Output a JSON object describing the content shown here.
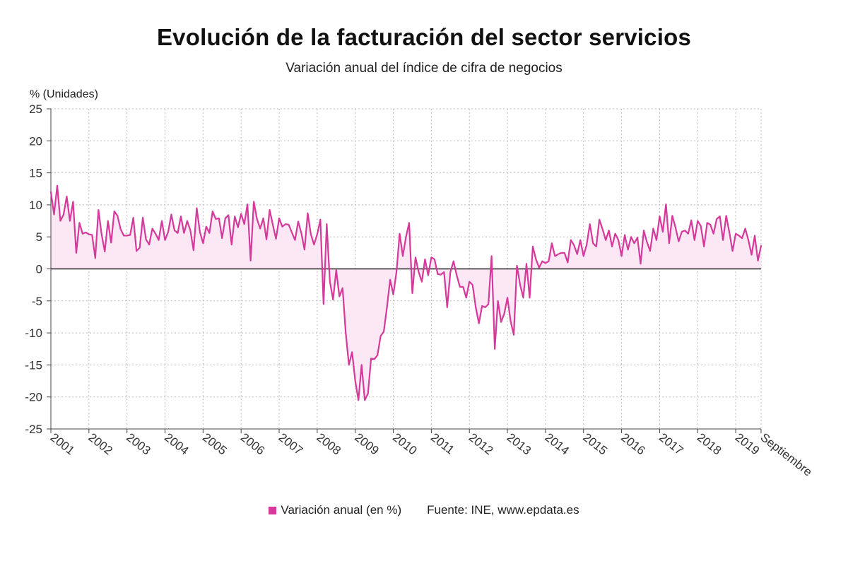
{
  "colors": {
    "series": "#d5399b",
    "fill": "#fbe8f4",
    "zero": "#222222",
    "grid": "#bbbbbb"
  },
  "legend": {
    "series_label": "Variación anual (en %)",
    "source": "Fuente: INE, www.epdata.es"
  },
  "chart_data": {
    "type": "line",
    "title": "Evolución de la facturación del sector servicios",
    "subtitle": "Variación anual del índice de cifra de negocios",
    "ylabel": "% (Unidades)",
    "xlabel": "",
    "ylim": [
      -25,
      25
    ],
    "yticks": [
      25,
      20,
      15,
      10,
      5,
      0,
      -5,
      -10,
      -15,
      -20,
      -25
    ],
    "grid": true,
    "legend_position": "bottom",
    "x_start": "2001-01",
    "x_end": "2019-09",
    "x_tick_labels": [
      "2001",
      "2002",
      "2003",
      "2004",
      "2005",
      "2006",
      "2007",
      "2008",
      "2009",
      "2010",
      "2011",
      "2012",
      "2013",
      "2014",
      "2015",
      "2016",
      "2017",
      "2018",
      "2019",
      "Septiembre"
    ],
    "series": [
      {
        "name": "Variación anual (en %)",
        "values": [
          12,
          8.5,
          13,
          7.5,
          8.5,
          11.3,
          7.5,
          10.5,
          2.5,
          7.2,
          5.5,
          5.7,
          5.4,
          5.3,
          1.7,
          9.2,
          5.4,
          2.7,
          7.5,
          4.1,
          9.0,
          8.3,
          6.2,
          5.2,
          5.2,
          5.3,
          8.0,
          2.8,
          3.3,
          8.0,
          4.6,
          3.8,
          6.3,
          5.5,
          4.5,
          7.5,
          4.5,
          5.8,
          8.5,
          6.0,
          5.6,
          8.2,
          5.6,
          7.5,
          6.0,
          2.9,
          9.5,
          5.8,
          4.0,
          6.6,
          5.6,
          9.0,
          7.8,
          7.9,
          4.8,
          7.9,
          8.4,
          3.8,
          8.2,
          6.5,
          8.6,
          7.0,
          10.1,
          1.3,
          10.5,
          7.8,
          6.3,
          7.9,
          4.6,
          9.2,
          6.9,
          4.7,
          7.9,
          6.6,
          7.0,
          6.9,
          5.7,
          4.5,
          7.4,
          5.6,
          3.0,
          8.7,
          5.4,
          3.8,
          5.4,
          7.7,
          -5.5,
          7.0,
          -2.0,
          -4.8,
          -0.2,
          -4.3,
          -3.0,
          -10.0,
          -15.0,
          -13.0,
          -17.5,
          -20.5,
          -15.0,
          -20.5,
          -19.5,
          -14.0,
          -14.1,
          -13.5,
          -10.5,
          -9.8,
          -6.0,
          -1.7,
          -4.0,
          -0.5,
          5.5,
          2.0,
          5.0,
          7.2,
          -3.8,
          1.8,
          -0.5,
          -2.0,
          1.5,
          -1.0,
          1.8,
          1.5,
          -0.8,
          -0.9,
          -0.5,
          -6.0,
          -0.5,
          1.2,
          -1.0,
          -2.8,
          -2.8,
          -4.5,
          -2.0,
          -2.5,
          -6.0,
          -8.5,
          -5.8,
          -6.0,
          -5.5,
          2.0,
          -12.5,
          -5.0,
          -8.3,
          -7.0,
          -4.5,
          -8.2,
          -10.3,
          0.5,
          -2.5,
          -4.5,
          0.8,
          -4.5,
          3.5,
          1.5,
          0.2,
          1.2,
          0.9,
          1.2,
          4.0,
          2.0,
          2.3,
          2.5,
          2.5,
          1.0,
          4.5,
          3.7,
          2.3,
          4.5,
          2.0,
          3.8,
          7.0,
          4.0,
          3.5,
          7.7,
          6.2,
          4.5,
          6.0,
          3.5,
          5.5,
          4.5,
          2.0,
          5.3,
          3.0,
          5.0,
          4.0,
          4.9,
          0.8,
          6.0,
          4.2,
          2.8,
          6.3,
          4.5,
          8.2,
          5.8,
          10.1,
          4.0,
          8.3,
          6.5,
          4.3,
          5.8,
          6.0,
          5.5,
          7.6,
          4.5,
          7.5,
          6.7,
          3.5,
          7.2,
          6.9,
          5.5,
          7.8,
          8.2,
          4.5,
          8.3,
          5.7,
          2.8,
          5.5,
          5.2,
          4.8,
          6.3,
          4.5,
          2.2,
          5.2,
          1.3,
          3.6
        ]
      }
    ]
  }
}
